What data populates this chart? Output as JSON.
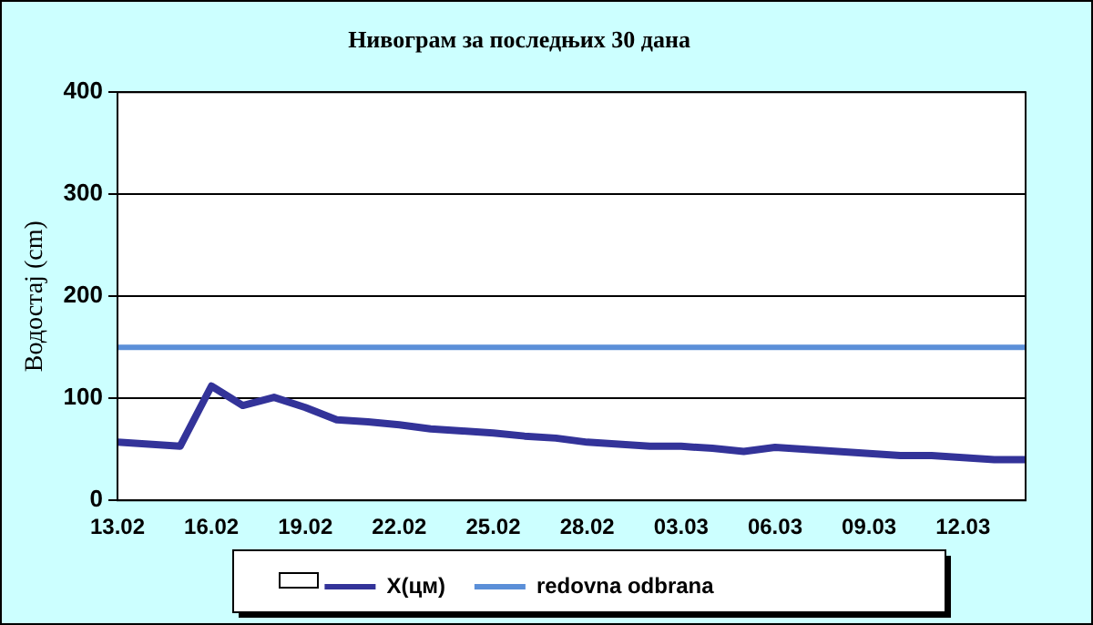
{
  "chart_data": {
    "type": "line",
    "title": "Нивограм за последњих 30 дана",
    "ylabel": "Водостај (cm)",
    "categories": [
      "13.02",
      null,
      null,
      "16.02",
      null,
      null,
      "19.02",
      null,
      null,
      "22.02",
      null,
      null,
      "25.02",
      null,
      null,
      "28.02",
      null,
      null,
      "03.03",
      null,
      null,
      "06.03",
      null,
      null,
      "09.03",
      null,
      null,
      "12.03",
      null,
      null
    ],
    "series": [
      {
        "name": "X(цм)",
        "color": "#333399",
        "values": [
          57,
          55,
          53,
          112,
          93,
          101,
          91,
          79,
          77,
          74,
          70,
          68,
          66,
          63,
          61,
          57,
          55,
          53,
          53,
          51,
          48,
          52,
          50,
          48,
          46,
          44,
          44,
          42,
          40,
          40
        ]
      }
    ],
    "ref_lines": [
      {
        "axis": "y",
        "value": 150,
        "label": "redovna odbrana",
        "color": "#5b8fd8"
      }
    ],
    "ylim": [
      0,
      400
    ],
    "yticks": [
      0,
      100,
      200,
      300,
      400
    ],
    "grid": "y",
    "legend": "bottom",
    "marker": "none",
    "line_style": "solid"
  }
}
